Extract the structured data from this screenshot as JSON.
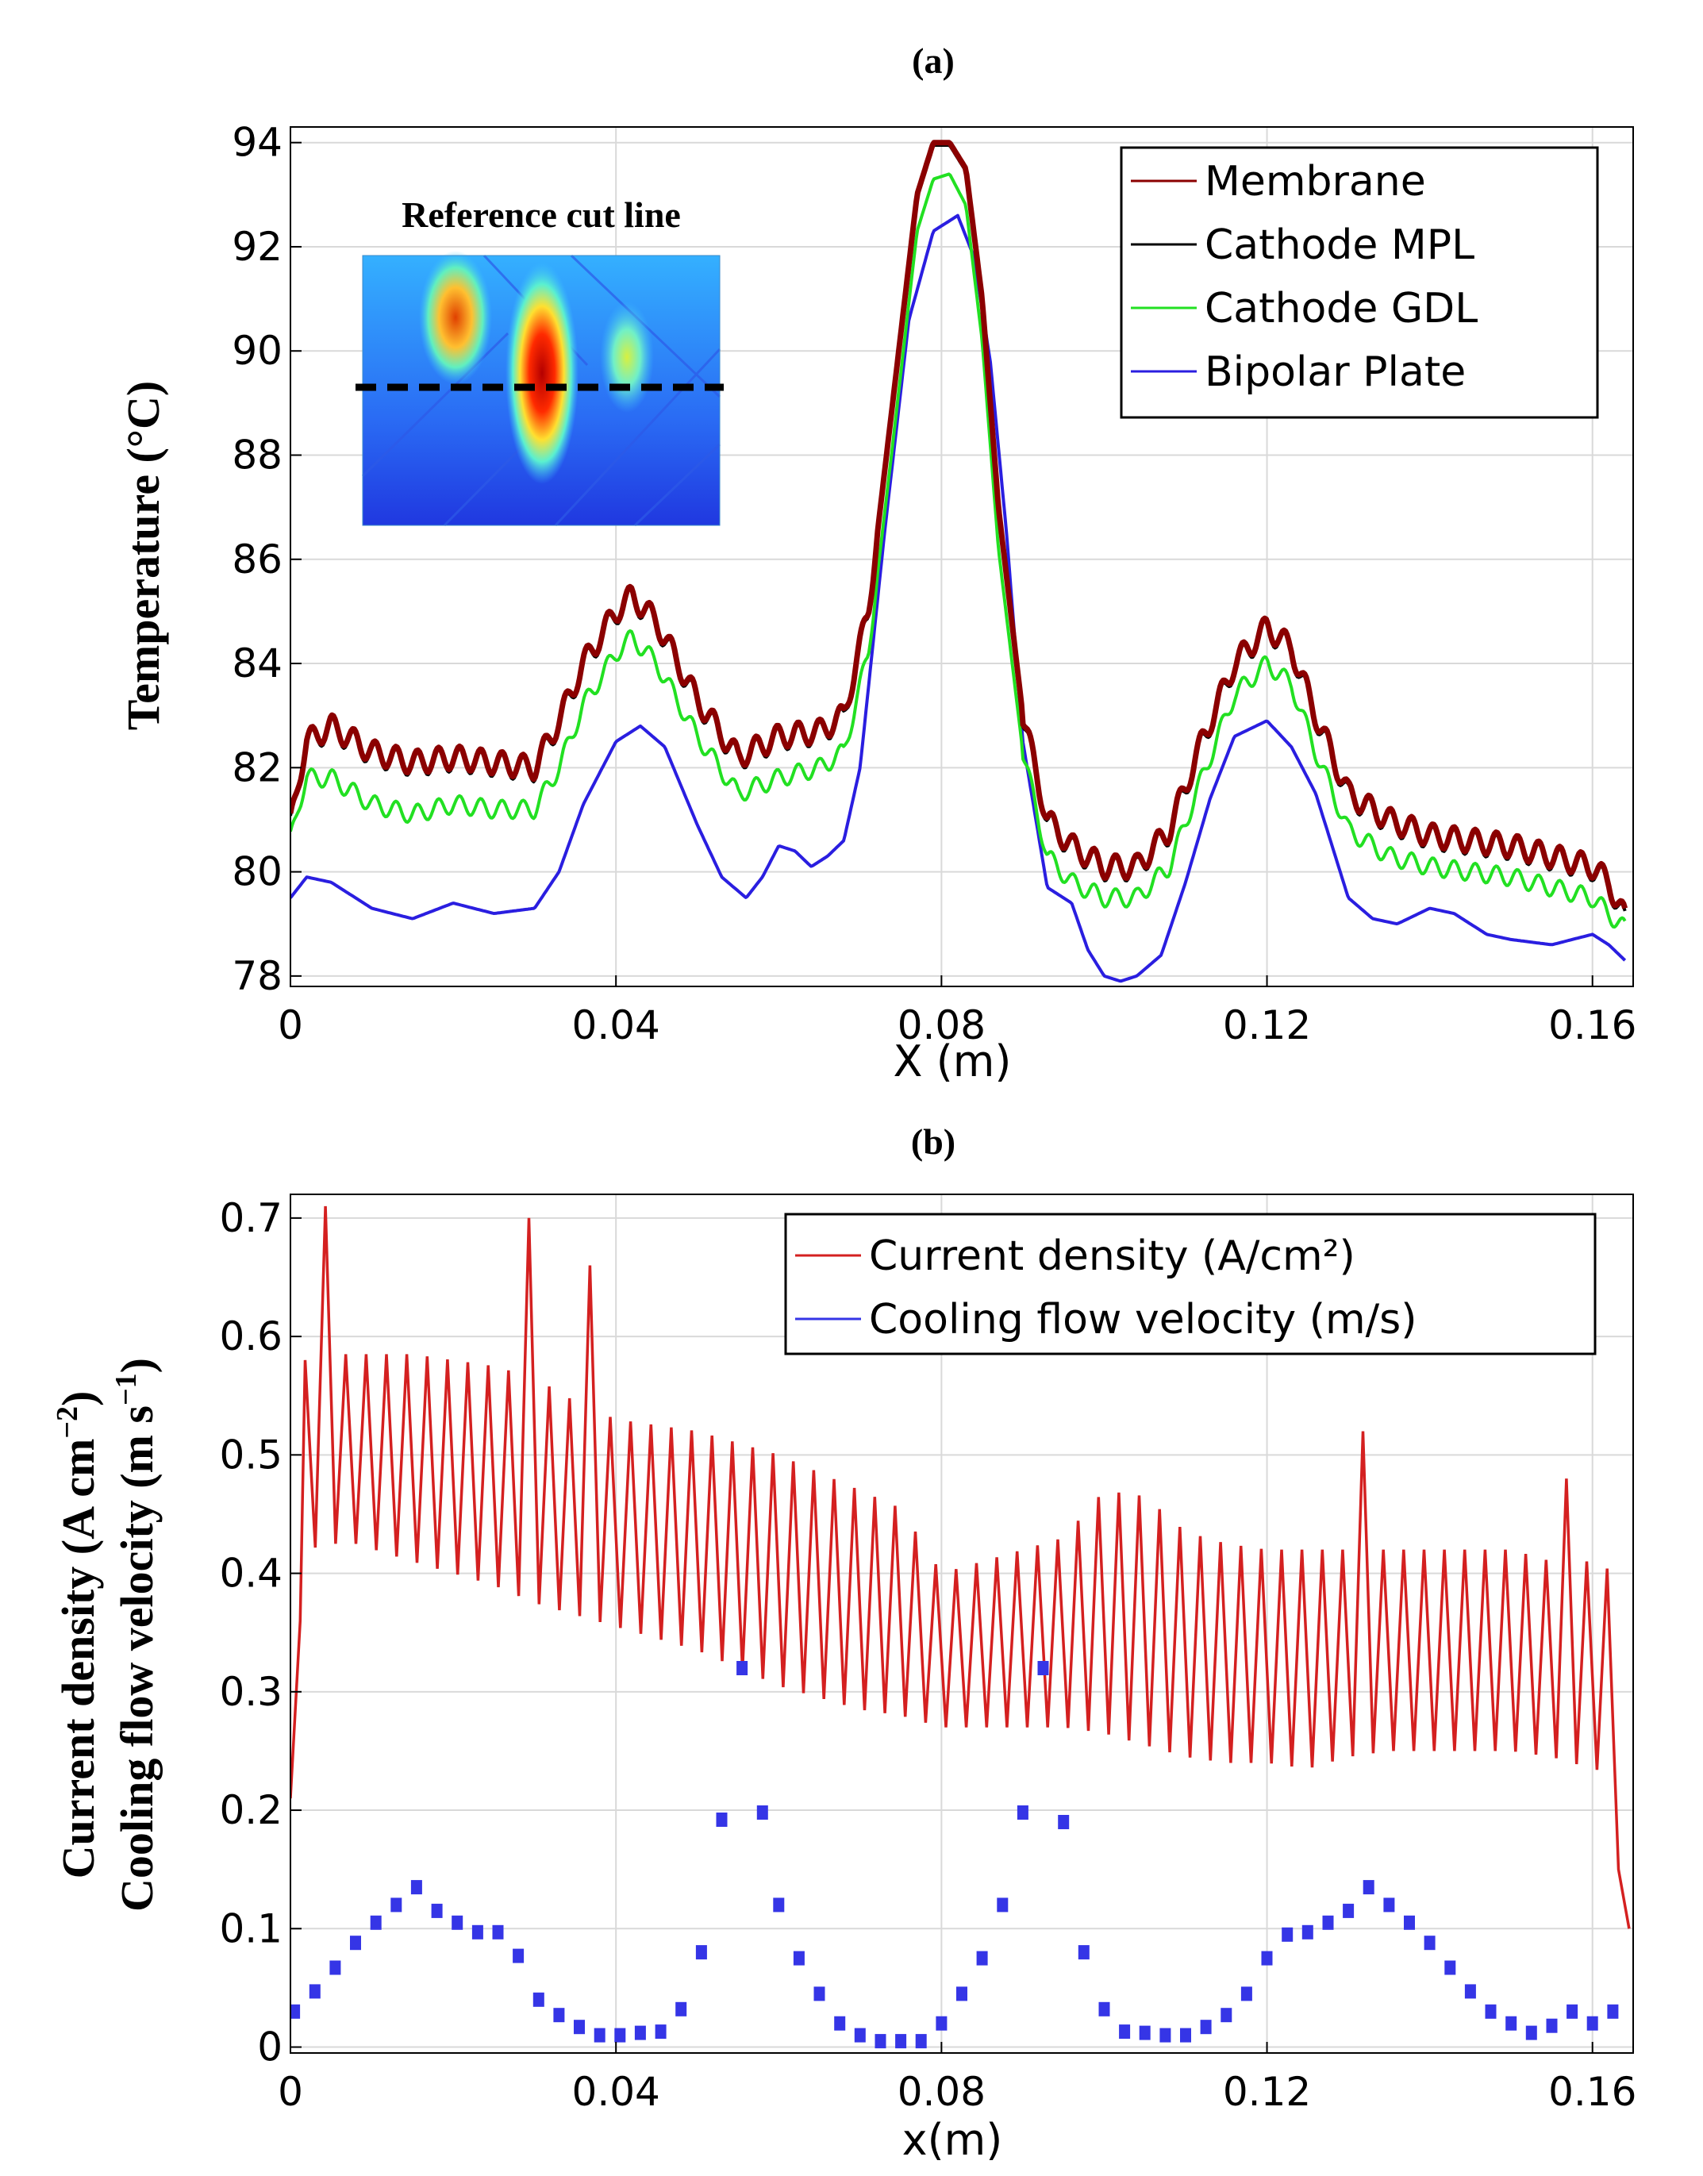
{
  "chart_data": [
    {
      "panel": "(a)",
      "type": "line",
      "title": "(a)",
      "xlabel": "X (m)",
      "ylabel": "Temperature (°C)",
      "xlim": [
        0,
        0.165
      ],
      "ylim": [
        77.8,
        94.3
      ],
      "xticks": [
        0,
        0.04,
        0.08,
        0.12,
        0.16
      ],
      "xtick_labels": [
        "0",
        "0.04",
        "0.08",
        "0.12",
        "0.16"
      ],
      "yticks": [
        78,
        80,
        82,
        84,
        86,
        88,
        90,
        92,
        94
      ],
      "ytick_labels": [
        "78",
        "80",
        "82",
        "84",
        "86",
        "88",
        "90",
        "92",
        "94"
      ],
      "grid": true,
      "legend_position": "top-right",
      "inset": {
        "title": "Reference cut line",
        "description_colors": [
          "#1a3cff",
          "#3fd0ff",
          "#ffe23a",
          "#e02010",
          "#a00000"
        ]
      },
      "series": [
        {
          "name": "Membrane",
          "color": "#8b0000",
          "x": [
            0,
            0.001,
            0.002,
            0.005,
            0.01,
            0.015,
            0.02,
            0.025,
            0.03,
            0.033,
            0.036,
            0.04,
            0.042,
            0.045,
            0.05,
            0.055,
            0.06,
            0.065,
            0.068,
            0.071,
            0.074,
            0.077,
            0.079,
            0.081,
            0.083,
            0.085,
            0.087,
            0.09,
            0.093,
            0.096,
            0.1,
            0.104,
            0.108,
            0.112,
            0.116,
            0.12,
            0.123,
            0.126,
            0.13,
            0.135,
            0.14,
            0.145,
            0.15,
            0.155,
            0.16,
            0.162,
            0.164
          ],
          "y": [
            80.9,
            81.8,
            82.5,
            82.8,
            82.3,
            82.1,
            82.2,
            82.1,
            82.0,
            82.9,
            84.0,
            85.0,
            85.3,
            84.8,
            83.3,
            82.2,
            82.6,
            82.7,
            83.0,
            85.0,
            89.0,
            93.0,
            94.0,
            94.0,
            93.5,
            91.0,
            87.0,
            83.0,
            81.0,
            80.5,
            80.1,
            80.1,
            80.8,
            82.5,
            84.0,
            84.7,
            84.3,
            83.0,
            81.5,
            81.0,
            80.7,
            80.6,
            80.5,
            80.3,
            80.1,
            79.8,
            79.1
          ],
          "ripple": 0.45
        },
        {
          "name": "Cathode MPL",
          "color": "#000000",
          "x": [
            0,
            0.001,
            0.002,
            0.005,
            0.01,
            0.015,
            0.02,
            0.025,
            0.03,
            0.033,
            0.036,
            0.04,
            0.042,
            0.045,
            0.05,
            0.055,
            0.06,
            0.065,
            0.068,
            0.071,
            0.074,
            0.077,
            0.079,
            0.081,
            0.083,
            0.085,
            0.087,
            0.09,
            0.093,
            0.096,
            0.1,
            0.104,
            0.108,
            0.112,
            0.116,
            0.12,
            0.123,
            0.126,
            0.13,
            0.135,
            0.14,
            0.145,
            0.15,
            0.155,
            0.16,
            0.162,
            0.164
          ],
          "y": [
            80.85,
            81.75,
            82.45,
            82.75,
            82.25,
            82.05,
            82.15,
            82.05,
            81.95,
            82.85,
            83.95,
            84.95,
            85.25,
            84.75,
            83.25,
            82.15,
            82.55,
            82.65,
            82.95,
            84.95,
            88.95,
            92.95,
            93.95,
            93.95,
            93.45,
            90.95,
            86.95,
            82.95,
            80.95,
            80.45,
            80.05,
            80.05,
            80.75,
            82.45,
            83.95,
            84.65,
            84.25,
            82.95,
            81.45,
            80.95,
            80.65,
            80.55,
            80.45,
            80.25,
            80.05,
            79.75,
            79.05
          ],
          "ripple": 0.45
        },
        {
          "name": "Cathode GDL",
          "color": "#22e022",
          "x": [
            0,
            0.001,
            0.002,
            0.005,
            0.01,
            0.015,
            0.02,
            0.025,
            0.03,
            0.033,
            0.036,
            0.04,
            0.042,
            0.045,
            0.05,
            0.055,
            0.06,
            0.065,
            0.068,
            0.071,
            0.074,
            0.077,
            0.079,
            0.081,
            0.083,
            0.085,
            0.087,
            0.09,
            0.093,
            0.096,
            0.1,
            0.104,
            0.108,
            0.112,
            0.116,
            0.12,
            0.123,
            0.126,
            0.13,
            0.135,
            0.14,
            0.145,
            0.15,
            0.155,
            0.16,
            0.162,
            0.164
          ],
          "y": [
            80.6,
            81.3,
            81.8,
            81.8,
            81.3,
            81.1,
            81.3,
            81.2,
            81.2,
            82.0,
            83.2,
            84.2,
            84.5,
            84.0,
            82.6,
            81.5,
            81.8,
            82.0,
            82.3,
            84.2,
            88.2,
            92.3,
            93.3,
            93.4,
            92.8,
            90.2,
            86.2,
            82.3,
            80.3,
            79.8,
            79.5,
            79.5,
            80.1,
            81.8,
            83.4,
            84.0,
            83.6,
            82.3,
            80.8,
            80.3,
            80.1,
            80.0,
            79.9,
            79.7,
            79.5,
            79.2,
            78.9
          ],
          "ripple": 0.35
        },
        {
          "name": "Bipolar Plate",
          "color": "#2a1ee0",
          "x": [
            0,
            0.002,
            0.005,
            0.01,
            0.015,
            0.02,
            0.025,
            0.03,
            0.033,
            0.036,
            0.04,
            0.043,
            0.046,
            0.05,
            0.053,
            0.056,
            0.058,
            0.06,
            0.062,
            0.064,
            0.066,
            0.068,
            0.07,
            0.073,
            0.076,
            0.079,
            0.082,
            0.084,
            0.086,
            0.088,
            0.09,
            0.093,
            0.096,
            0.098,
            0.1,
            0.102,
            0.104,
            0.107,
            0.11,
            0.113,
            0.116,
            0.12,
            0.123,
            0.126,
            0.13,
            0.133,
            0.136,
            0.14,
            0.143,
            0.147,
            0.15,
            0.155,
            0.16,
            0.162,
            0.164
          ],
          "y": [
            79.5,
            79.9,
            79.8,
            79.3,
            79.1,
            79.4,
            79.2,
            79.3,
            80.0,
            81.3,
            82.5,
            82.8,
            82.4,
            80.9,
            79.9,
            79.5,
            79.9,
            80.5,
            80.4,
            80.1,
            80.3,
            80.6,
            82.0,
            86.5,
            90.6,
            92.3,
            92.6,
            91.8,
            89.8,
            86.5,
            82.5,
            79.7,
            79.4,
            78.5,
            78.0,
            77.9,
            78.0,
            78.4,
            79.8,
            81.4,
            82.6,
            82.9,
            82.4,
            81.5,
            79.5,
            79.1,
            79.0,
            79.3,
            79.2,
            78.8,
            78.7,
            78.6,
            78.8,
            78.6,
            78.3
          ],
          "ripple": 0.0
        }
      ]
    },
    {
      "panel": "(b)",
      "type": "line+scatter",
      "title": "(b)",
      "xlabel": "x(m)",
      "ylabel_line1": "Current density (A cm",
      "ylabel_line1_sup": "−2",
      "ylabel_line1_end": ")",
      "ylabel_line2": "Cooling flow velocity (m s",
      "ylabel_line2_sup": "−1",
      "ylabel_line2_end": ")",
      "xlim": [
        0,
        0.165
      ],
      "ylim": [
        -0.005,
        0.72
      ],
      "xticks": [
        0,
        0.04,
        0.08,
        0.12,
        0.16
      ],
      "xtick_labels": [
        "0",
        "0.04",
        "0.08",
        "0.12",
        "0.16"
      ],
      "yticks": [
        0,
        0.1,
        0.2,
        0.3,
        0.4,
        0.5,
        0.6,
        0.7
      ],
      "ytick_labels": [
        "0",
        "0.1",
        "0.2",
        "0.3",
        "0.4",
        "0.5",
        "0.6",
        "0.7"
      ],
      "grid": true,
      "legend_position": "top-right",
      "series": [
        {
          "name": "Current density (A/cm²)",
          "color": "#d42020",
          "kind": "sawtooth",
          "start": [
            0,
            0.21
          ],
          "end": [
            0.1645,
            0.1
          ],
          "period": 0.0025,
          "upper_envelope": {
            "x": [
              0.002,
              0.005,
              0.008,
              0.015,
              0.02,
              0.025,
              0.03,
              0.035,
              0.04,
              0.045,
              0.05,
              0.055,
              0.06,
              0.065,
              0.07,
              0.075,
              0.08,
              0.085,
              0.09,
              0.095,
              0.1,
              0.105,
              0.11,
              0.115,
              0.12,
              0.125,
              0.13,
              0.135,
              0.14,
              0.145,
              0.15,
              0.155,
              0.16,
              0.163
            ],
            "y": [
              0.58,
              0.585,
              0.585,
              0.585,
              0.58,
              0.575,
              0.565,
              0.545,
              0.53,
              0.525,
              0.52,
              0.51,
              0.5,
              0.485,
              0.47,
              0.455,
              0.4,
              0.41,
              0.42,
              0.43,
              0.47,
              0.465,
              0.435,
              0.425,
              0.42,
              0.42,
              0.42,
              0.42,
              0.42,
              0.42,
              0.42,
              0.41,
              0.41,
              0.4
            ]
          },
          "lower_envelope": {
            "x": [
              0.002,
              0.005,
              0.008,
              0.015,
              0.02,
              0.025,
              0.03,
              0.035,
              0.04,
              0.045,
              0.05,
              0.055,
              0.06,
              0.065,
              0.07,
              0.075,
              0.08,
              0.085,
              0.09,
              0.095,
              0.1,
              0.105,
              0.11,
              0.115,
              0.12,
              0.125,
              0.13,
              0.135,
              0.14,
              0.145,
              0.15,
              0.155,
              0.16,
              0.163
            ],
            "y": [
              0.42,
              0.425,
              0.425,
              0.41,
              0.4,
              0.39,
              0.375,
              0.365,
              0.355,
              0.345,
              0.335,
              0.32,
              0.305,
              0.295,
              0.285,
              0.28,
              0.27,
              0.27,
              0.27,
              0.27,
              0.265,
              0.255,
              0.245,
              0.24,
              0.24,
              0.235,
              0.245,
              0.25,
              0.25,
              0.25,
              0.25,
              0.245,
              0.235,
              0.23
            ]
          },
          "spikes": [
            {
              "x": 0.0047,
              "y": 0.71
            },
            {
              "x": 0.0285,
              "y": 0.7
            },
            {
              "x": 0.0365,
              "y": 0.66
            },
            {
              "x": 0.1318,
              "y": 0.52
            },
            {
              "x": 0.1575,
              "y": 0.48
            }
          ]
        },
        {
          "name": "Cooling flow velocity (m/s)",
          "color": "#3535e6",
          "kind": "scatter",
          "x": [
            0.0005,
            0.003,
            0.0055,
            0.008,
            0.0105,
            0.013,
            0.0155,
            0.018,
            0.0205,
            0.023,
            0.0255,
            0.028,
            0.0305,
            0.033,
            0.0355,
            0.038,
            0.0405,
            0.043,
            0.0455,
            0.048,
            0.0505,
            0.053,
            0.0555,
            0.058,
            0.06,
            0.0625,
            0.065,
            0.0675,
            0.07,
            0.0725,
            0.075,
            0.0775,
            0.08,
            0.0825,
            0.085,
            0.0875,
            0.09,
            0.0925,
            0.095,
            0.0975,
            0.1,
            0.1025,
            0.105,
            0.1075,
            0.11,
            0.1125,
            0.115,
            0.1175,
            0.12,
            0.1225,
            0.125,
            0.1275,
            0.13,
            0.1325,
            0.135,
            0.1375,
            0.14,
            0.1425,
            0.145,
            0.1475,
            0.15,
            0.1525,
            0.155,
            0.1575,
            0.16,
            0.1625
          ],
          "y": [
            0.03,
            0.047,
            0.067,
            0.088,
            0.105,
            0.12,
            0.135,
            0.115,
            0.105,
            0.097,
            0.097,
            0.077,
            0.04,
            0.027,
            0.017,
            0.01,
            0.01,
            0.012,
            0.013,
            0.032,
            0.08,
            0.192,
            0.32,
            0.198,
            0.12,
            0.075,
            0.045,
            0.02,
            0.01,
            0.005,
            0.005,
            0.005,
            0.02,
            0.045,
            0.075,
            0.12,
            0.198,
            0.32,
            0.19,
            0.08,
            0.032,
            0.013,
            0.012,
            0.01,
            0.01,
            0.017,
            0.027,
            0.045,
            0.075,
            0.095,
            0.097,
            0.105,
            0.115,
            0.135,
            0.12,
            0.105,
            0.088,
            0.067,
            0.047,
            0.03,
            0.02,
            0.012,
            0.018,
            0.03,
            0.02,
            0.03
          ]
        }
      ]
    }
  ]
}
